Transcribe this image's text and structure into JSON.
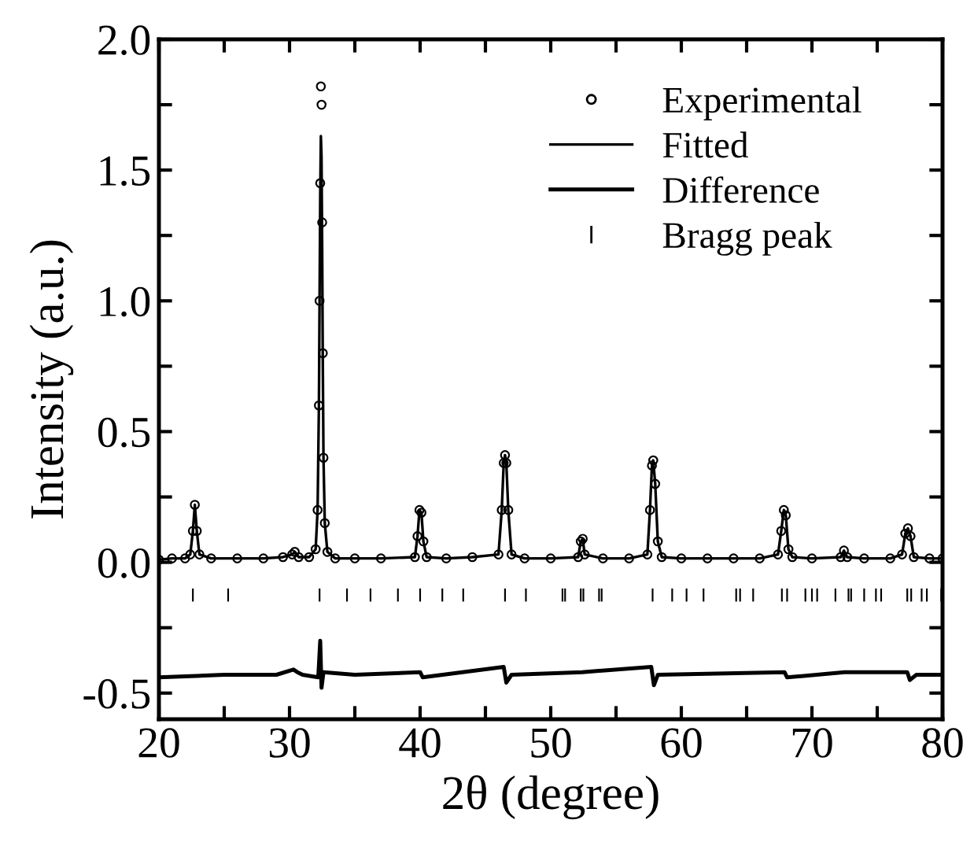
{
  "chart_data": {
    "type": "line",
    "xlabel": "2θ (degree)",
    "ylabel": "Intensity (a.u.)",
    "xlim": [
      20,
      80
    ],
    "ylim": [
      -0.6,
      2.0
    ],
    "xticks": [
      20,
      {
        "value": 25,
        "label": null
      },
      30,
      {
        "value": 35,
        "label": null
      },
      40,
      {
        "value": 45,
        "label": null
      },
      50,
      {
        "value": 55,
        "label": null
      },
      60,
      {
        "value": 65,
        "label": null
      },
      70,
      {
        "value": 75,
        "label": null
      },
      80
    ],
    "yticks": [
      {
        "value": -0.5,
        "label": "-0.5"
      },
      {
        "value": -0.25,
        "label": null
      },
      {
        "value": 0.0,
        "label": "0.0"
      },
      {
        "value": 0.25,
        "label": null
      },
      {
        "value": 0.5,
        "label": "0.5"
      },
      {
        "value": 0.75,
        "label": null
      },
      {
        "value": 1.0,
        "label": "1.0"
      },
      {
        "value": 1.25,
        "label": null
      },
      {
        "value": 1.5,
        "label": "1.5"
      },
      {
        "value": 1.75,
        "label": null
      },
      {
        "value": 2.0,
        "label": "2.0"
      }
    ],
    "grid": false,
    "legend": "top right",
    "series": [
      {
        "name": "Experimental",
        "type": "scatter",
        "marker": "circle",
        "color": "#000000",
        "x": [
          20,
          21,
          22,
          22.4,
          22.6,
          22.75,
          22.9,
          23.1,
          24,
          26,
          28,
          29.5,
          30.2,
          30.4,
          30.7,
          31.5,
          32.0,
          32.15,
          32.25,
          32.3,
          32.35,
          32.4,
          32.45,
          32.5,
          32.55,
          32.6,
          32.7,
          32.9,
          33.5,
          35,
          37,
          39.6,
          39.8,
          39.95,
          40.1,
          40.25,
          40.5,
          42,
          44,
          46.0,
          46.25,
          46.4,
          46.5,
          46.6,
          46.75,
          47.0,
          48,
          50,
          52.1,
          52.3,
          52.45,
          52.6,
          54,
          56,
          57.4,
          57.6,
          57.75,
          57.85,
          58.0,
          58.2,
          58.5,
          60,
          62,
          64,
          66,
          67.4,
          67.65,
          67.85,
          68.0,
          68.2,
          68.5,
          70,
          72.2,
          72.45,
          72.7,
          74,
          76,
          76.9,
          77.15,
          77.35,
          77.55,
          77.8,
          79,
          80
        ],
        "values": [
          0.01,
          0.015,
          0.015,
          0.03,
          0.12,
          0.22,
          0.12,
          0.03,
          0.015,
          0.015,
          0.015,
          0.02,
          0.03,
          0.04,
          0.02,
          0.02,
          0.05,
          0.2,
          0.6,
          1.0,
          1.45,
          1.82,
          1.75,
          1.3,
          0.8,
          0.4,
          0.15,
          0.04,
          0.015,
          0.015,
          0.015,
          0.02,
          0.1,
          0.2,
          0.19,
          0.08,
          0.02,
          0.015,
          0.02,
          0.03,
          0.2,
          0.38,
          0.41,
          0.38,
          0.2,
          0.03,
          0.015,
          0.015,
          0.02,
          0.08,
          0.09,
          0.03,
          0.015,
          0.015,
          0.03,
          0.2,
          0.37,
          0.39,
          0.3,
          0.08,
          0.02,
          0.015,
          0.015,
          0.015,
          0.015,
          0.03,
          0.12,
          0.2,
          0.18,
          0.05,
          0.02,
          0.015,
          0.02,
          0.045,
          0.02,
          0.015,
          0.015,
          0.03,
          0.11,
          0.13,
          0.1,
          0.02,
          0.015,
          0.015
        ]
      },
      {
        "name": "Fitted",
        "marker": "none",
        "color": "#000000",
        "x": [
          20,
          21,
          22,
          22.4,
          22.6,
          22.75,
          22.9,
          23.1,
          24,
          26,
          28,
          29.5,
          30.2,
          30.4,
          30.7,
          31.5,
          32.0,
          32.15,
          32.25,
          32.3,
          32.35,
          32.4,
          32.45,
          32.5,
          32.55,
          32.6,
          32.7,
          32.9,
          33.5,
          35,
          37,
          39.6,
          39.8,
          39.95,
          40.1,
          40.25,
          40.5,
          42,
          44,
          46.0,
          46.25,
          46.4,
          46.5,
          46.6,
          46.75,
          47.0,
          48,
          50,
          52.1,
          52.3,
          52.45,
          52.6,
          54,
          56,
          57.4,
          57.6,
          57.75,
          57.85,
          58.0,
          58.2,
          58.5,
          60,
          62,
          64,
          66,
          67.4,
          67.65,
          67.85,
          68.0,
          68.2,
          68.5,
          70,
          72.2,
          72.45,
          72.7,
          74,
          76,
          76.9,
          77.15,
          77.35,
          77.55,
          77.8,
          79,
          80
        ],
        "values": [
          0.01,
          0.015,
          0.015,
          0.03,
          0.12,
          0.22,
          0.12,
          0.03,
          0.015,
          0.015,
          0.015,
          0.02,
          0.03,
          0.04,
          0.02,
          0.02,
          0.05,
          0.2,
          0.6,
          1.0,
          1.4,
          1.63,
          1.55,
          1.2,
          0.75,
          0.4,
          0.15,
          0.04,
          0.015,
          0.015,
          0.015,
          0.02,
          0.1,
          0.2,
          0.19,
          0.08,
          0.02,
          0.015,
          0.02,
          0.03,
          0.2,
          0.38,
          0.41,
          0.38,
          0.2,
          0.03,
          0.015,
          0.015,
          0.02,
          0.08,
          0.09,
          0.03,
          0.015,
          0.015,
          0.03,
          0.2,
          0.37,
          0.39,
          0.3,
          0.08,
          0.02,
          0.015,
          0.015,
          0.015,
          0.015,
          0.03,
          0.12,
          0.2,
          0.18,
          0.05,
          0.02,
          0.015,
          0.02,
          0.045,
          0.02,
          0.015,
          0.015,
          0.03,
          0.11,
          0.13,
          0.1,
          0.02,
          0.015,
          0.015
        ]
      },
      {
        "name": "Difference",
        "marker": "none",
        "color": "#000000",
        "x": [
          20,
          25,
          29,
          30.3,
          30.6,
          31,
          32.2,
          32.35,
          32.45,
          32.6,
          35,
          40,
          40.2,
          46.4,
          46.6,
          47,
          52.4,
          57.7,
          57.9,
          58.2,
          67.9,
          68.1,
          72.5,
          77.3,
          77.5,
          78,
          80
        ],
        "values": [
          -0.44,
          -0.43,
          -0.43,
          -0.41,
          -0.42,
          -0.43,
          -0.44,
          -0.3,
          -0.48,
          -0.42,
          -0.43,
          -0.42,
          -0.44,
          -0.4,
          -0.46,
          -0.43,
          -0.42,
          -0.4,
          -0.47,
          -0.43,
          -0.42,
          -0.44,
          -0.42,
          -0.42,
          -0.45,
          -0.43,
          -0.43
        ]
      },
      {
        "name": "Bragg peak",
        "type": "bar",
        "color": "#000000",
        "base": [
          -0.15,
          -0.15,
          -0.15,
          -0.15,
          -0.15,
          -0.15,
          -0.15,
          -0.15,
          -0.15,
          -0.15,
          -0.15,
          -0.15,
          -0.15,
          -0.15,
          -0.15,
          -0.15,
          -0.15,
          -0.15,
          -0.15,
          -0.15,
          -0.15,
          -0.15,
          -0.15,
          -0.15,
          -0.15,
          -0.15,
          -0.15,
          -0.15,
          -0.15,
          -0.15,
          -0.15,
          -0.15,
          -0.15,
          -0.15,
          -0.15,
          -0.15,
          -0.15,
          -0.15,
          -0.15,
          -0.15
        ],
        "x": [
          22.6,
          25.3,
          32.3,
          34.4,
          36.2,
          38.3,
          40.0,
          41.7,
          43.3,
          46.5,
          48.1,
          50.9,
          51.1,
          52.3,
          52.5,
          53.7,
          53.9,
          57.8,
          59.3,
          60.4,
          61.7,
          64.2,
          64.5,
          65.5,
          67.7,
          68.1,
          69.5,
          70.0,
          70.4,
          71.8,
          72.8,
          73.0,
          74.0,
          74.9,
          75.3,
          77.3,
          77.6,
          78.4,
          78.8,
          79.9
        ],
        "values": [
          0.05,
          0.05,
          0.05,
          0.05,
          0.05,
          0.05,
          0.05,
          0.05,
          0.05,
          0.05,
          0.05,
          0.05,
          0.05,
          0.05,
          0.05,
          0.05,
          0.05,
          0.05,
          0.05,
          0.05,
          0.05,
          0.05,
          0.05,
          0.05,
          0.05,
          0.05,
          0.05,
          0.05,
          0.05,
          0.05,
          0.05,
          0.05,
          0.05,
          0.05,
          0.05,
          0.05,
          0.05,
          0.05,
          0.05,
          0.05
        ]
      }
    ]
  }
}
